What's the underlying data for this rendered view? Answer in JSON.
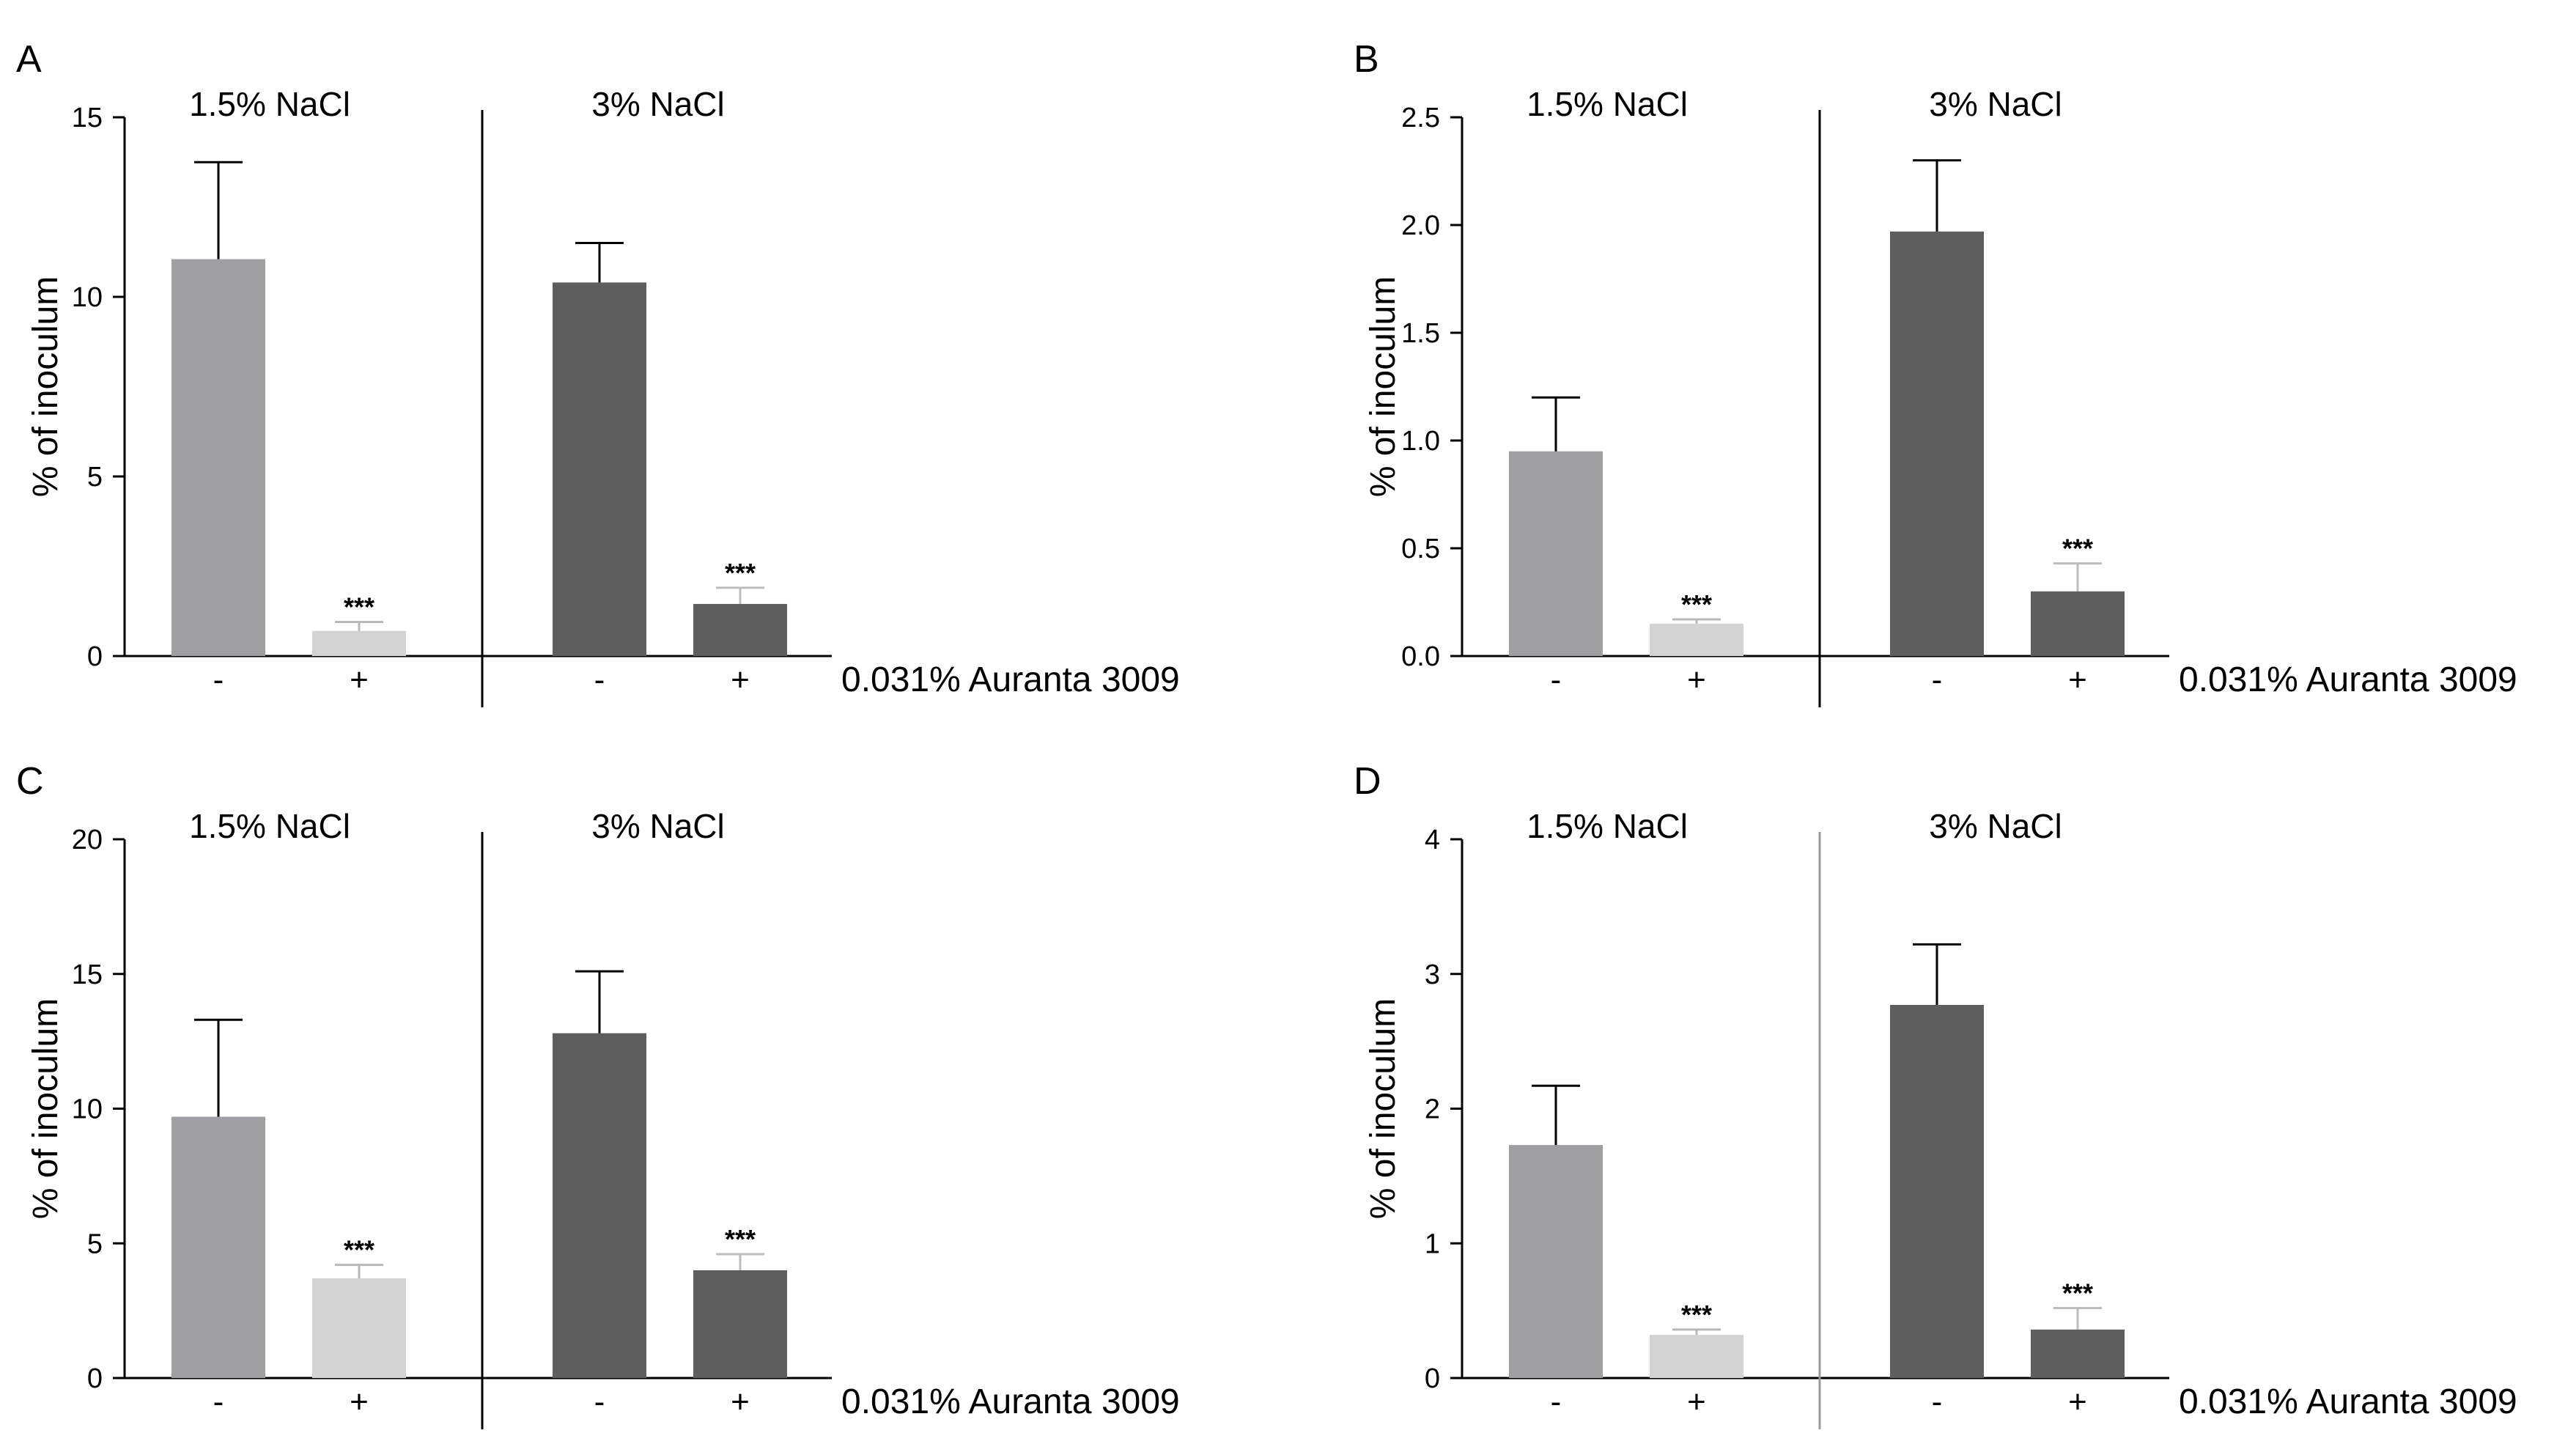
{
  "figure": {
    "colors": {
      "bar_15_minus": "#9e9ea3",
      "bar_15_plus": "#d3d3d3",
      "bar_3_minus": "#5e5e5e",
      "bar_3_plus": "#5e5e5e",
      "axis": "#000000",
      "error_bar_15_plus": "#b8b8b8",
      "error_bar_3_plus": "#bdbdbd"
    }
  },
  "chart_data": [
    {
      "panel": "A",
      "type": "bar",
      "ylabel": "% of inoculum",
      "ylim": [
        0,
        15
      ],
      "yticks": [
        0,
        5,
        10,
        15
      ],
      "ytick_labels": [
        "0",
        "5",
        "10",
        "15"
      ],
      "groups": [
        "1.5% NaCl",
        "3% NaCl"
      ],
      "categories": [
        "-",
        "+",
        "-",
        "+"
      ],
      "values": [
        11.05,
        0.7,
        10.4,
        1.45
      ],
      "errors": [
        2.7,
        0.25,
        1.1,
        0.45
      ],
      "significance": [
        "",
        "***",
        "",
        "***"
      ],
      "treatment_label": "0.031% Auranta 3009"
    },
    {
      "panel": "B",
      "type": "bar",
      "ylabel": "% of inoculum",
      "ylim": [
        0,
        2.5
      ],
      "yticks": [
        0,
        0.5,
        1,
        1.5,
        2,
        2.5
      ],
      "ytick_labels": [
        "0.0",
        "0.5",
        "1.0",
        "1.5",
        "2.0",
        "2.5"
      ],
      "groups": [
        "1.5% NaCl",
        "3% NaCl"
      ],
      "categories": [
        "-",
        "+",
        "-",
        "+"
      ],
      "values": [
        0.95,
        0.15,
        1.97,
        0.3
      ],
      "errors": [
        0.25,
        0.02,
        0.33,
        0.13
      ],
      "significance": [
        "",
        "***",
        "",
        "***"
      ],
      "treatment_label": "0.031% Auranta 3009"
    },
    {
      "panel": "C",
      "type": "bar",
      "ylabel": "% of inoculum",
      "ylim": [
        0,
        20
      ],
      "yticks": [
        0,
        5,
        10,
        15,
        20
      ],
      "ytick_labels": [
        "0",
        "5",
        "10",
        "15",
        "20"
      ],
      "groups": [
        "1.5% NaCl",
        "3% NaCl"
      ],
      "categories": [
        "-",
        "+",
        "-",
        "+"
      ],
      "values": [
        9.7,
        3.7,
        12.8,
        4.0
      ],
      "errors": [
        3.6,
        0.5,
        2.3,
        0.6
      ],
      "significance": [
        "",
        "***",
        "",
        "***"
      ],
      "treatment_label": "0.031% Auranta 3009"
    },
    {
      "panel": "D",
      "type": "bar",
      "ylabel": "% of inoculum",
      "ylim": [
        0,
        4
      ],
      "yticks": [
        0,
        1,
        2,
        3,
        4
      ],
      "ytick_labels": [
        "0",
        "1",
        "2",
        "3",
        "4"
      ],
      "groups": [
        "1.5% NaCl",
        "3% NaCl"
      ],
      "categories": [
        "-",
        "+",
        "-",
        "+"
      ],
      "values": [
        1.73,
        0.32,
        2.77,
        0.36
      ],
      "errors": [
        0.44,
        0.04,
        0.45,
        0.16
      ],
      "significance": [
        "",
        "***",
        "",
        "***"
      ],
      "treatment_label": "0.031% Auranta 3009"
    }
  ]
}
